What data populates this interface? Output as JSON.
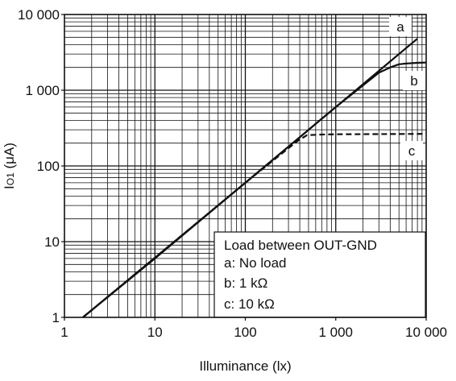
{
  "chart_data": {
    "type": "line",
    "xlabel": "Illuminance  (lx)",
    "ylabel_main": "I",
    "ylabel_sub": "O1",
    "ylabel_unit": " (μA)",
    "xscale": "log",
    "yscale": "log",
    "xlim": [
      1,
      10000
    ],
    "ylim": [
      1,
      10000
    ],
    "grid": true,
    "x_ticks": [
      {
        "value": 1,
        "label": "1"
      },
      {
        "value": 10,
        "label": "10"
      },
      {
        "value": 100,
        "label": "100"
      },
      {
        "value": 1000,
        "label": "1 000"
      },
      {
        "value": 10000,
        "label": "10 000"
      }
    ],
    "y_ticks": [
      {
        "value": 1,
        "label": "1"
      },
      {
        "value": 10,
        "label": "10"
      },
      {
        "value": 100,
        "label": "100"
      },
      {
        "value": 1000,
        "label": "1 000"
      },
      {
        "value": 10000,
        "label": "10 000"
      }
    ],
    "series": [
      {
        "name": "a",
        "style": "solid",
        "label_position": "top-right",
        "x": [
          1.6,
          10,
          100,
          1000,
          3000,
          8000
        ],
        "y": [
          1,
          6,
          60,
          600,
          1800,
          4800
        ]
      },
      {
        "name": "b",
        "style": "solid",
        "label_position": "upper-right",
        "x": [
          1.6,
          100,
          1000,
          3000,
          4000,
          5000,
          6000,
          8000,
          10000
        ],
        "y": [
          1,
          60,
          600,
          1700,
          2000,
          2200,
          2250,
          2300,
          2320
        ]
      },
      {
        "name": "c",
        "style": "dashed",
        "label_position": "right",
        "x": [
          1.6,
          100,
          380,
          480,
          700,
          1000,
          10000
        ],
        "y": [
          1,
          60,
          215,
          255,
          260,
          262,
          265
        ]
      }
    ],
    "legend": {
      "position": "bottom-right",
      "title": "Load between OUT-GND",
      "entries": [
        "a: No load",
        "b: 1 kΩ",
        "c: 10 kΩ"
      ]
    },
    "colors": {
      "line": "#111111",
      "grid": "#111111",
      "background": "#ffffff"
    }
  }
}
